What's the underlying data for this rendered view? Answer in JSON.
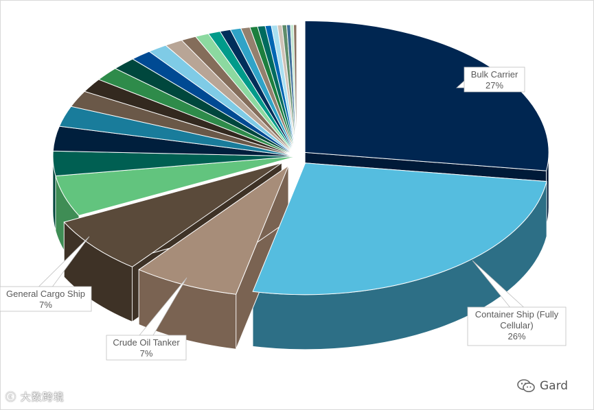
{
  "chart_data": {
    "type": "pie",
    "title": "",
    "style": "3d-exploded",
    "slices": [
      {
        "label": "Bulk Carrier",
        "value": 27,
        "color": "#002651",
        "side": "#001a38"
      },
      {
        "label": "Container Ship (Fully Cellular)",
        "value": 26,
        "color": "#55bddf",
        "side": "#2d6f86"
      },
      {
        "label": "Crude Oil Tanker",
        "value": 7,
        "color": "#a78d79",
        "side": "#7a6352"
      },
      {
        "label": "General Cargo Ship",
        "value": 7,
        "color": "#5a4a3a",
        "side": "#3e3226"
      },
      {
        "label": "",
        "value": 5,
        "color": "#62c47e",
        "side": "#3f8d55"
      },
      {
        "label": "",
        "value": 3,
        "color": "#005f52",
        "side": "#00443a"
      },
      {
        "label": "",
        "value": 3,
        "color": "#001f3d",
        "side": "#00152a"
      },
      {
        "label": "",
        "value": 2.5,
        "color": "#197c9b",
        "side": "#115a71"
      },
      {
        "label": "",
        "value": 2,
        "color": "#6a5848",
        "side": "#4a3d32"
      },
      {
        "label": "",
        "value": 1.7,
        "color": "#33291f",
        "side": "#221b14"
      },
      {
        "label": "",
        "value": 1.7,
        "color": "#2e8b4a",
        "side": "#1f6133"
      },
      {
        "label": "",
        "value": 1.6,
        "color": "#00473d",
        "side": "#00332c"
      },
      {
        "label": "",
        "value": 1.4,
        "color": "#004a93",
        "side": "#003366"
      },
      {
        "label": "",
        "value": 1.3,
        "color": "#7fcbe6",
        "side": "#5a9fb8"
      },
      {
        "label": "",
        "value": 1.2,
        "color": "#b8a596",
        "side": "#8e7d70"
      },
      {
        "label": "",
        "value": 1.0,
        "color": "#846d5a",
        "side": "#5e4e40"
      },
      {
        "label": "",
        "value": 0.9,
        "color": "#8cd9a0",
        "side": "#62a874"
      },
      {
        "label": "",
        "value": 0.8,
        "color": "#009b8a",
        "side": "#006f63"
      },
      {
        "label": "",
        "value": 0.7,
        "color": "#002e5a",
        "side": "#001f3d"
      },
      {
        "label": "",
        "value": 0.7,
        "color": "#30a3c7",
        "side": "#217591"
      },
      {
        "label": "",
        "value": 0.6,
        "color": "#94806e",
        "side": "#6d5e51"
      },
      {
        "label": "",
        "value": 0.5,
        "color": "#1d7f3e",
        "side": "#145a2c"
      },
      {
        "label": "",
        "value": 0.5,
        "color": "#006b5e",
        "side": "#004d44"
      },
      {
        "label": "",
        "value": 0.4,
        "color": "#0066b3",
        "side": "#004a82"
      },
      {
        "label": "",
        "value": 0.4,
        "color": "#a9dff0",
        "side": "#7cb0c0"
      },
      {
        "label": "",
        "value": 0.3,
        "color": "#d0c2b7",
        "side": "#a0948b"
      },
      {
        "label": "",
        "value": 0.3,
        "color": "#5e8c6a",
        "side": "#43664c"
      },
      {
        "label": "",
        "value": 0.25,
        "color": "#3c6e99",
        "side": "#2a4f6e"
      },
      {
        "label": "",
        "value": 0.2,
        "color": "#c2e8d0",
        "side": "#98baa4"
      },
      {
        "label": "",
        "value": 0.2,
        "color": "#8a7260",
        "side": "#655446"
      }
    ],
    "callouts": [
      {
        "slice": 0,
        "lines": [
          "Bulk Carrier",
          "27%"
        ]
      },
      {
        "slice": 1,
        "lines": [
          "Container Ship (Fully",
          "Cellular)",
          "26%"
        ]
      },
      {
        "slice": 2,
        "lines": [
          "Crude Oil Tanker",
          "7%"
        ]
      },
      {
        "slice": 3,
        "lines": [
          "General Cargo Ship",
          "7%"
        ]
      }
    ],
    "legend": "none"
  },
  "watermarks": {
    "left_text": "大数跨境",
    "right_text": "Gard",
    "right_icon": "wechat-icon"
  }
}
